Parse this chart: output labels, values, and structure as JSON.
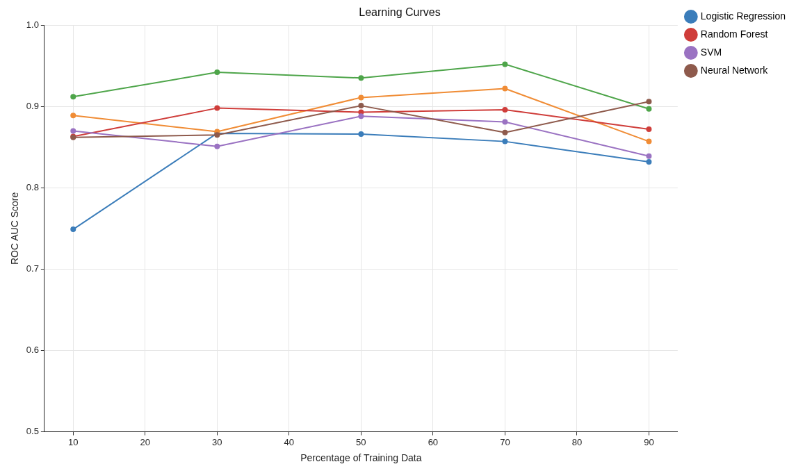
{
  "chart_data": {
    "type": "line",
    "title": "Learning Curves",
    "xlabel": "Percentage of Training Data",
    "ylabel": "ROC AUC Score",
    "x": [
      10,
      30,
      50,
      70,
      90
    ],
    "series": [
      {
        "name": "Logistic Regression",
        "color": "#3b7dba",
        "values": [
          0.749,
          0.867,
          0.866,
          0.857,
          0.832
        ]
      },
      {
        "color": "#f08c35",
        "values": [
          0.889,
          0.869,
          0.911,
          0.922,
          0.857
        ]
      },
      {
        "color": "#4ea54a",
        "values": [
          0.912,
          0.942,
          0.935,
          0.952,
          0.897
        ]
      },
      {
        "name": "Random Forest",
        "color": "#cf3d3a",
        "values": [
          0.863,
          0.898,
          0.893,
          0.896,
          0.872
        ]
      },
      {
        "name": "SVM",
        "color": "#9a72c2",
        "values": [
          0.87,
          0.851,
          0.888,
          0.881,
          0.839
        ]
      },
      {
        "name": "Neural Network",
        "color": "#8e5a4c",
        "values": [
          0.862,
          0.865,
          0.901,
          0.868,
          0.906
        ]
      }
    ],
    "xlim": [
      6,
      94
    ],
    "xticks": [
      10,
      20,
      30,
      40,
      50,
      60,
      70,
      80,
      90
    ],
    "ylim": [
      0.5,
      1.0
    ],
    "yticks": [
      0.5,
      0.6,
      0.7,
      0.8,
      0.9,
      {
        "value": 1.0,
        "label": "1.0"
      }
    ],
    "grid": true,
    "legend": "top right",
    "marker": "circle",
    "line_style": "solid"
  }
}
